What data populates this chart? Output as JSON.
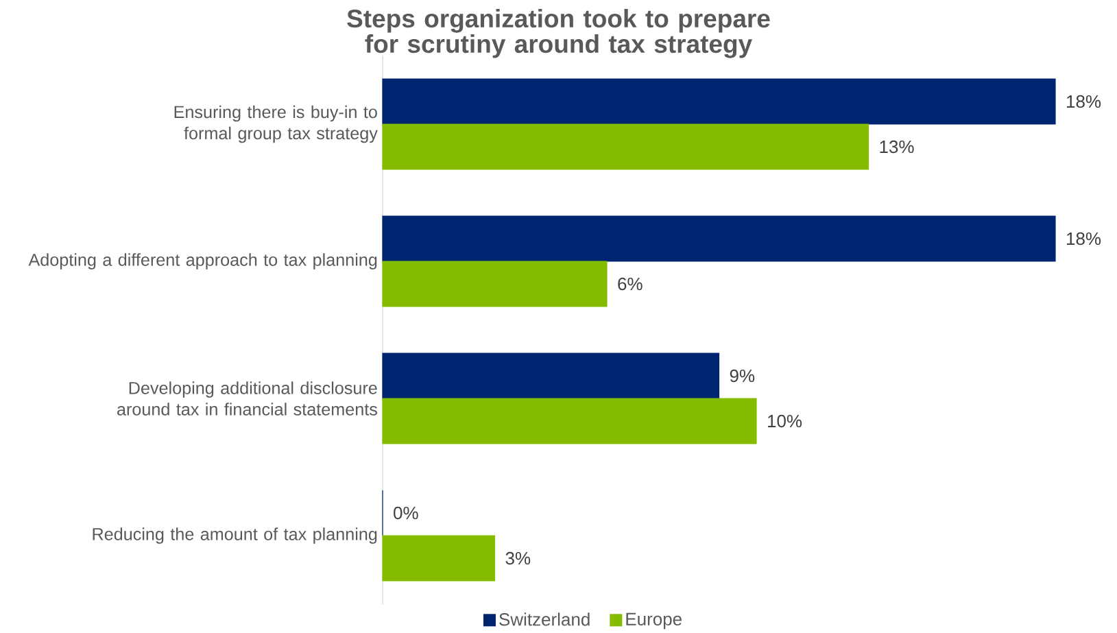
{
  "chart_data": {
    "type": "bar",
    "orientation": "horizontal",
    "title": "Steps organization took to prepare for scrutiny around tax strategy",
    "categories": [
      "Ensuring there is buy-in to formal group tax strategy",
      "Adopting a different approach to tax planning",
      "Developing additional disclosure around tax in financial statements",
      "Reducing the amount of tax planning"
    ],
    "series": [
      {
        "name": "Switzerland",
        "color": "#002570",
        "values": [
          18,
          18,
          9,
          0
        ],
        "value_labels": [
          "18%",
          "18%",
          "9%",
          "0%"
        ]
      },
      {
        "name": "Europe",
        "color": "#84bd00",
        "values": [
          13,
          6,
          10,
          3
        ],
        "value_labels": [
          "13%",
          "6%",
          "10%",
          "3%"
        ]
      }
    ],
    "legend": "bottom"
  }
}
